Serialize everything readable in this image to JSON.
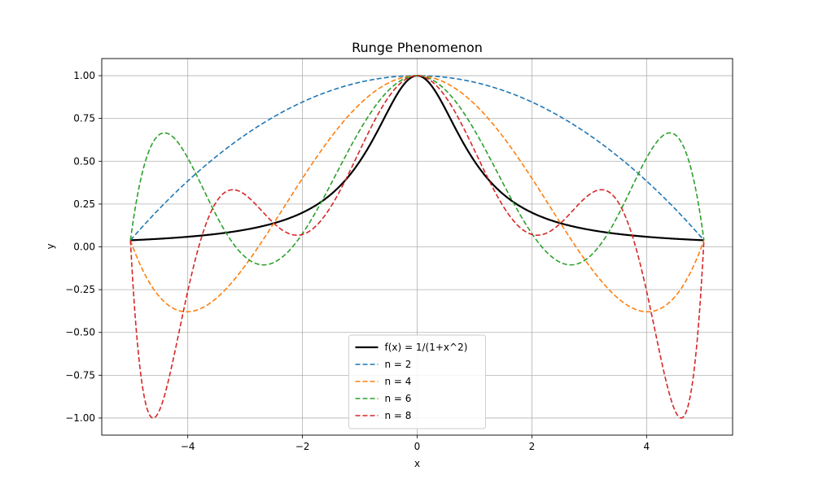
{
  "chart_data": {
    "type": "line",
    "title": "Runge Phenomenon",
    "xlabel": "x",
    "ylabel": "y",
    "xlim": [
      -5.5,
      5.5
    ],
    "ylim": [
      -1.1,
      1.1
    ],
    "xticks": [
      -4,
      -2,
      0,
      2,
      4
    ],
    "xtick_labels": [
      "−4",
      "−2",
      "0",
      "2",
      "4"
    ],
    "yticks": [
      1.0,
      0.75,
      0.5,
      0.25,
      0.0,
      -0.25,
      -0.5,
      -0.75,
      -1.0
    ],
    "ytick_labels": [
      "1.00",
      "0.75",
      "0.50",
      "0.25",
      "0.00",
      "−0.25",
      "−0.50",
      "−0.75",
      "−1.00"
    ],
    "grid": true,
    "legend_position": "lower center",
    "domain": [
      -5,
      5
    ],
    "series": [
      {
        "name": "f(x) = 1/(1+x^2)",
        "kind": "function",
        "color": "#000000",
        "dashed": false
      },
      {
        "name": "n = 2",
        "kind": "interpolant",
        "degree": 2,
        "color": "#1f77b4",
        "dashed": true
      },
      {
        "name": "n = 4",
        "kind": "interpolant",
        "degree": 4,
        "color": "#ff7f0e",
        "dashed": true
      },
      {
        "name": "n = 6",
        "kind": "interpolant",
        "degree": 6,
        "color": "#2ca02c",
        "dashed": true
      },
      {
        "name": "n = 8",
        "kind": "interpolant",
        "degree": 8,
        "color": "#d62728",
        "dashed": true
      }
    ]
  }
}
